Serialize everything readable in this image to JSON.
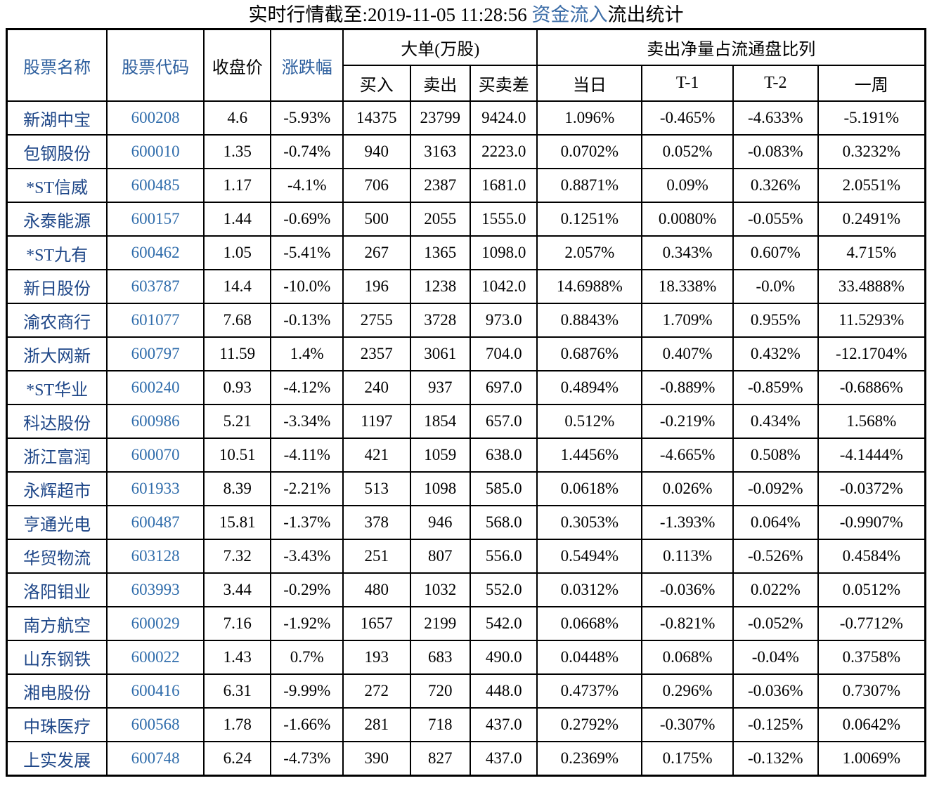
{
  "title": {
    "prefix": "实时行情截至:2019-11-05 11:28:56 ",
    "highlight": "资金流入",
    "suffix": "流出统计"
  },
  "colors": {
    "header-blue": "#2d5f9e",
    "name-blue": "#1f4788",
    "code-blue": "#2f6cab",
    "title-blue": "#3d6ea8"
  },
  "table": {
    "headers": {
      "stock_name": "股票名称",
      "stock_code": "股票代码",
      "close_price": "收盘价",
      "change_pct": "涨跌幅",
      "group_large_orders": "大单(万股)",
      "buy": "买入",
      "sell": "卖出",
      "buy_sell_diff": "买卖差",
      "group_net_sell_ratio": "卖出净量占流通盘比列",
      "day": "当日",
      "t1": "T-1",
      "t2": "T-2",
      "week": "一周"
    },
    "column_keys": [
      "stock-name",
      "stock-code",
      "close-price",
      "change-pct",
      "buy-volume",
      "sell-volume",
      "buy-sell-diff",
      "ratio-day",
      "ratio-t1",
      "ratio-t2",
      "ratio-week"
    ],
    "rows": [
      [
        "新湖中宝",
        "600208",
        "4.6",
        "-5.93%",
        "14375",
        "23799",
        "9424.0",
        "1.096%",
        "-0.465%",
        "-4.633%",
        "-5.191%"
      ],
      [
        "包钢股份",
        "600010",
        "1.35",
        "-0.74%",
        "940",
        "3163",
        "2223.0",
        "0.0702%",
        "0.052%",
        "-0.083%",
        "0.3232%"
      ],
      [
        "*ST信威",
        "600485",
        "1.17",
        "-4.1%",
        "706",
        "2387",
        "1681.0",
        "0.8871%",
        "0.09%",
        "0.326%",
        "2.0551%"
      ],
      [
        "永泰能源",
        "600157",
        "1.44",
        "-0.69%",
        "500",
        "2055",
        "1555.0",
        "0.1251%",
        "0.0080%",
        "-0.055%",
        "0.2491%"
      ],
      [
        "*ST九有",
        "600462",
        "1.05",
        "-5.41%",
        "267",
        "1365",
        "1098.0",
        "2.057%",
        "0.343%",
        "0.607%",
        "4.715%"
      ],
      [
        "新日股份",
        "603787",
        "14.4",
        "-10.0%",
        "196",
        "1238",
        "1042.0",
        "14.6988%",
        "18.338%",
        "-0.0%",
        "33.4888%"
      ],
      [
        "渝农商行",
        "601077",
        "7.68",
        "-0.13%",
        "2755",
        "3728",
        "973.0",
        "0.8843%",
        "1.709%",
        "0.955%",
        "11.5293%"
      ],
      [
        "浙大网新",
        "600797",
        "11.59",
        "1.4%",
        "2357",
        "3061",
        "704.0",
        "0.6876%",
        "0.407%",
        "0.432%",
        "-12.1704%"
      ],
      [
        "*ST华业",
        "600240",
        "0.93",
        "-4.12%",
        "240",
        "937",
        "697.0",
        "0.4894%",
        "-0.889%",
        "-0.859%",
        "-0.6886%"
      ],
      [
        "科达股份",
        "600986",
        "5.21",
        "-3.34%",
        "1197",
        "1854",
        "657.0",
        "0.512%",
        "-0.219%",
        "0.434%",
        "1.568%"
      ],
      [
        "浙江富润",
        "600070",
        "10.51",
        "-4.11%",
        "421",
        "1059",
        "638.0",
        "1.4456%",
        "-4.665%",
        "0.508%",
        "-4.1444%"
      ],
      [
        "永辉超市",
        "601933",
        "8.39",
        "-2.21%",
        "513",
        "1098",
        "585.0",
        "0.0618%",
        "0.026%",
        "-0.092%",
        "-0.0372%"
      ],
      [
        "亨通光电",
        "600487",
        "15.81",
        "-1.37%",
        "378",
        "946",
        "568.0",
        "0.3053%",
        "-1.393%",
        "0.064%",
        "-0.9907%"
      ],
      [
        "华贸物流",
        "603128",
        "7.32",
        "-3.43%",
        "251",
        "807",
        "556.0",
        "0.5494%",
        "0.113%",
        "-0.526%",
        "0.4584%"
      ],
      [
        "洛阳钼业",
        "603993",
        "3.44",
        "-0.29%",
        "480",
        "1032",
        "552.0",
        "0.0312%",
        "-0.036%",
        "0.022%",
        "0.0512%"
      ],
      [
        "南方航空",
        "600029",
        "7.16",
        "-1.92%",
        "1657",
        "2199",
        "542.0",
        "0.0668%",
        "-0.821%",
        "-0.052%",
        "-0.7712%"
      ],
      [
        "山东钢铁",
        "600022",
        "1.43",
        "0.7%",
        "193",
        "683",
        "490.0",
        "0.0448%",
        "0.068%",
        "-0.04%",
        "0.3758%"
      ],
      [
        "湘电股份",
        "600416",
        "6.31",
        "-9.99%",
        "272",
        "720",
        "448.0",
        "0.4737%",
        "0.296%",
        "-0.036%",
        "0.7307%"
      ],
      [
        "中珠医疗",
        "600568",
        "1.78",
        "-1.66%",
        "281",
        "718",
        "437.0",
        "0.2792%",
        "-0.307%",
        "-0.125%",
        "0.0642%"
      ],
      [
        "上实发展",
        "600748",
        "6.24",
        "-4.73%",
        "390",
        "827",
        "437.0",
        "0.2369%",
        "0.175%",
        "-0.132%",
        "1.0069%"
      ]
    ]
  }
}
